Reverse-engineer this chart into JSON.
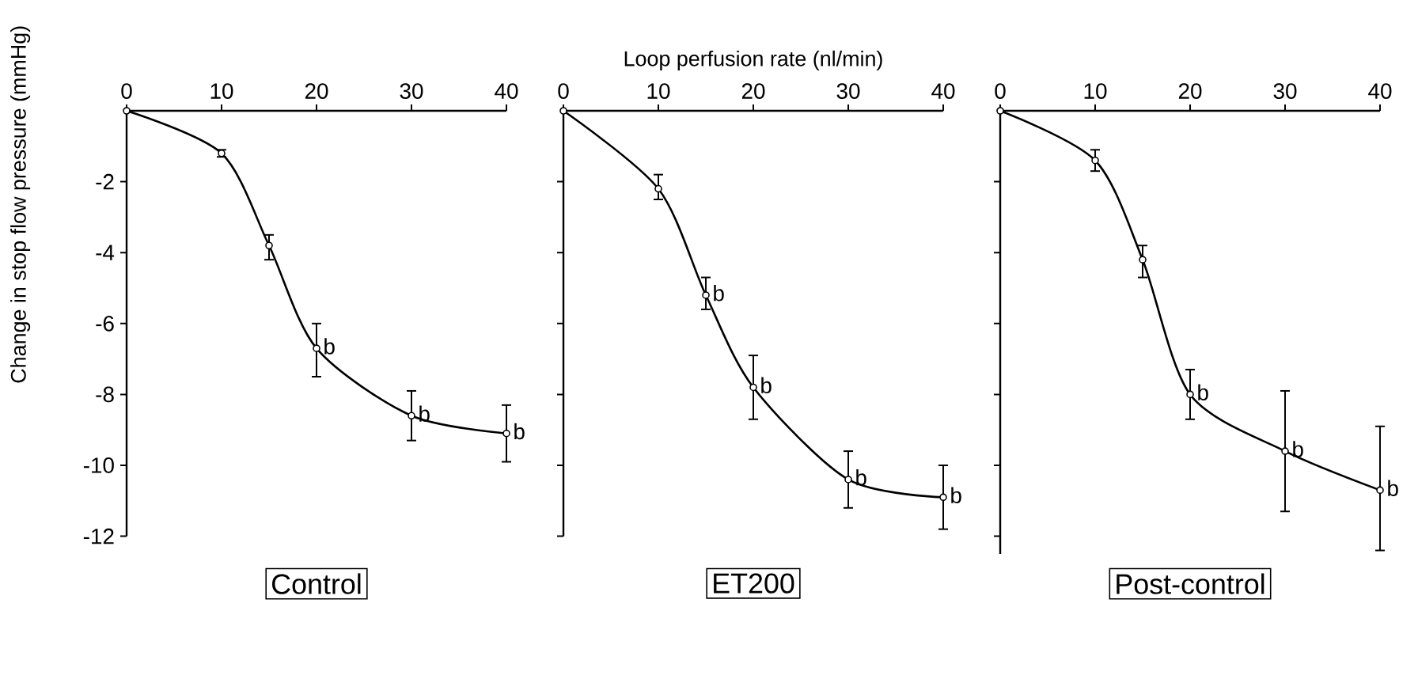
{
  "chart_data": [
    {
      "type": "line",
      "title": "Control",
      "ylabel": "Change in stop flow pressure (mmHg)",
      "x": [
        0,
        10,
        15,
        20,
        30,
        40
      ],
      "values": [
        0,
        -1.2,
        -3.8,
        -6.7,
        -8.6,
        -9.1
      ],
      "errors": [
        null,
        [
          -1.3,
          -1.1
        ],
        [
          -4.2,
          -3.5
        ],
        [
          -7.5,
          -6.0
        ],
        [
          -9.3,
          -7.9
        ],
        [
          -9.9,
          -8.3
        ]
      ],
      "xlim": [
        0,
        40
      ],
      "ylim": [
        -12,
        0
      ],
      "xticks": [
        0,
        10,
        20,
        30,
        40
      ],
      "yticks": [
        -12,
        -10,
        -8,
        -6,
        -4,
        -2
      ],
      "marker": "circle",
      "color": "#000000",
      "annotations": [
        {
          "text": "b",
          "x": 20,
          "y": -6.7
        },
        {
          "text": "b",
          "x": 30,
          "y": -8.6
        },
        {
          "text": "b",
          "x": 40,
          "y": -9.1
        }
      ]
    },
    {
      "type": "line",
      "title": "ET200",
      "xlabel": "Loop perfusion rate (nl/min)",
      "x": [
        0,
        10,
        15,
        20,
        30,
        40
      ],
      "values": [
        0,
        -2.2,
        -5.2,
        -7.8,
        -10.4,
        -10.9
      ],
      "errors": [
        null,
        [
          -2.5,
          -1.8
        ],
        [
          -5.6,
          -4.7
        ],
        [
          -8.7,
          -6.9
        ],
        [
          -11.2,
          -9.6
        ],
        [
          -11.8,
          -10.0
        ]
      ],
      "xlim": [
        0,
        40
      ],
      "ylim": [
        -12,
        0
      ],
      "xticks": [
        0,
        10,
        20,
        30,
        40
      ],
      "yticks": [
        -12,
        -10,
        -8,
        -6,
        -4,
        -2
      ],
      "tick_labels": "x",
      "marker": "circle",
      "color": "#000000",
      "annotations": [
        {
          "text": "b",
          "x": 15,
          "y": -5.2
        },
        {
          "text": "b",
          "x": 20,
          "y": -7.8
        },
        {
          "text": "b",
          "x": 30,
          "y": -10.4
        },
        {
          "text": "b",
          "x": 40,
          "y": -10.9
        }
      ]
    },
    {
      "type": "line",
      "title": "Post-control",
      "x": [
        0,
        10,
        15,
        20,
        30,
        40
      ],
      "values": [
        0,
        -1.4,
        -4.2,
        -8.0,
        -9.6,
        -10.7
      ],
      "errors": [
        null,
        [
          -1.7,
          -1.1
        ],
        [
          -4.7,
          -3.8
        ],
        [
          -8.7,
          -7.3
        ],
        [
          -11.3,
          -7.9
        ],
        [
          -12.4,
          -8.9
        ]
      ],
      "xlim": [
        0,
        40
      ],
      "ylim": [
        -12.5,
        0
      ],
      "xticks": [
        0,
        10,
        20,
        30,
        40
      ],
      "yticks": [
        -12,
        -10,
        -8,
        -6,
        -4,
        -2
      ],
      "tick_labels": "x",
      "marker": "circle",
      "color": "#000000",
      "annotations": [
        {
          "text": "b",
          "x": 20,
          "y": -8.0
        },
        {
          "text": "b",
          "x": 30,
          "y": -9.6
        },
        {
          "text": "b",
          "x": 40,
          "y": -10.7
        }
      ]
    }
  ]
}
